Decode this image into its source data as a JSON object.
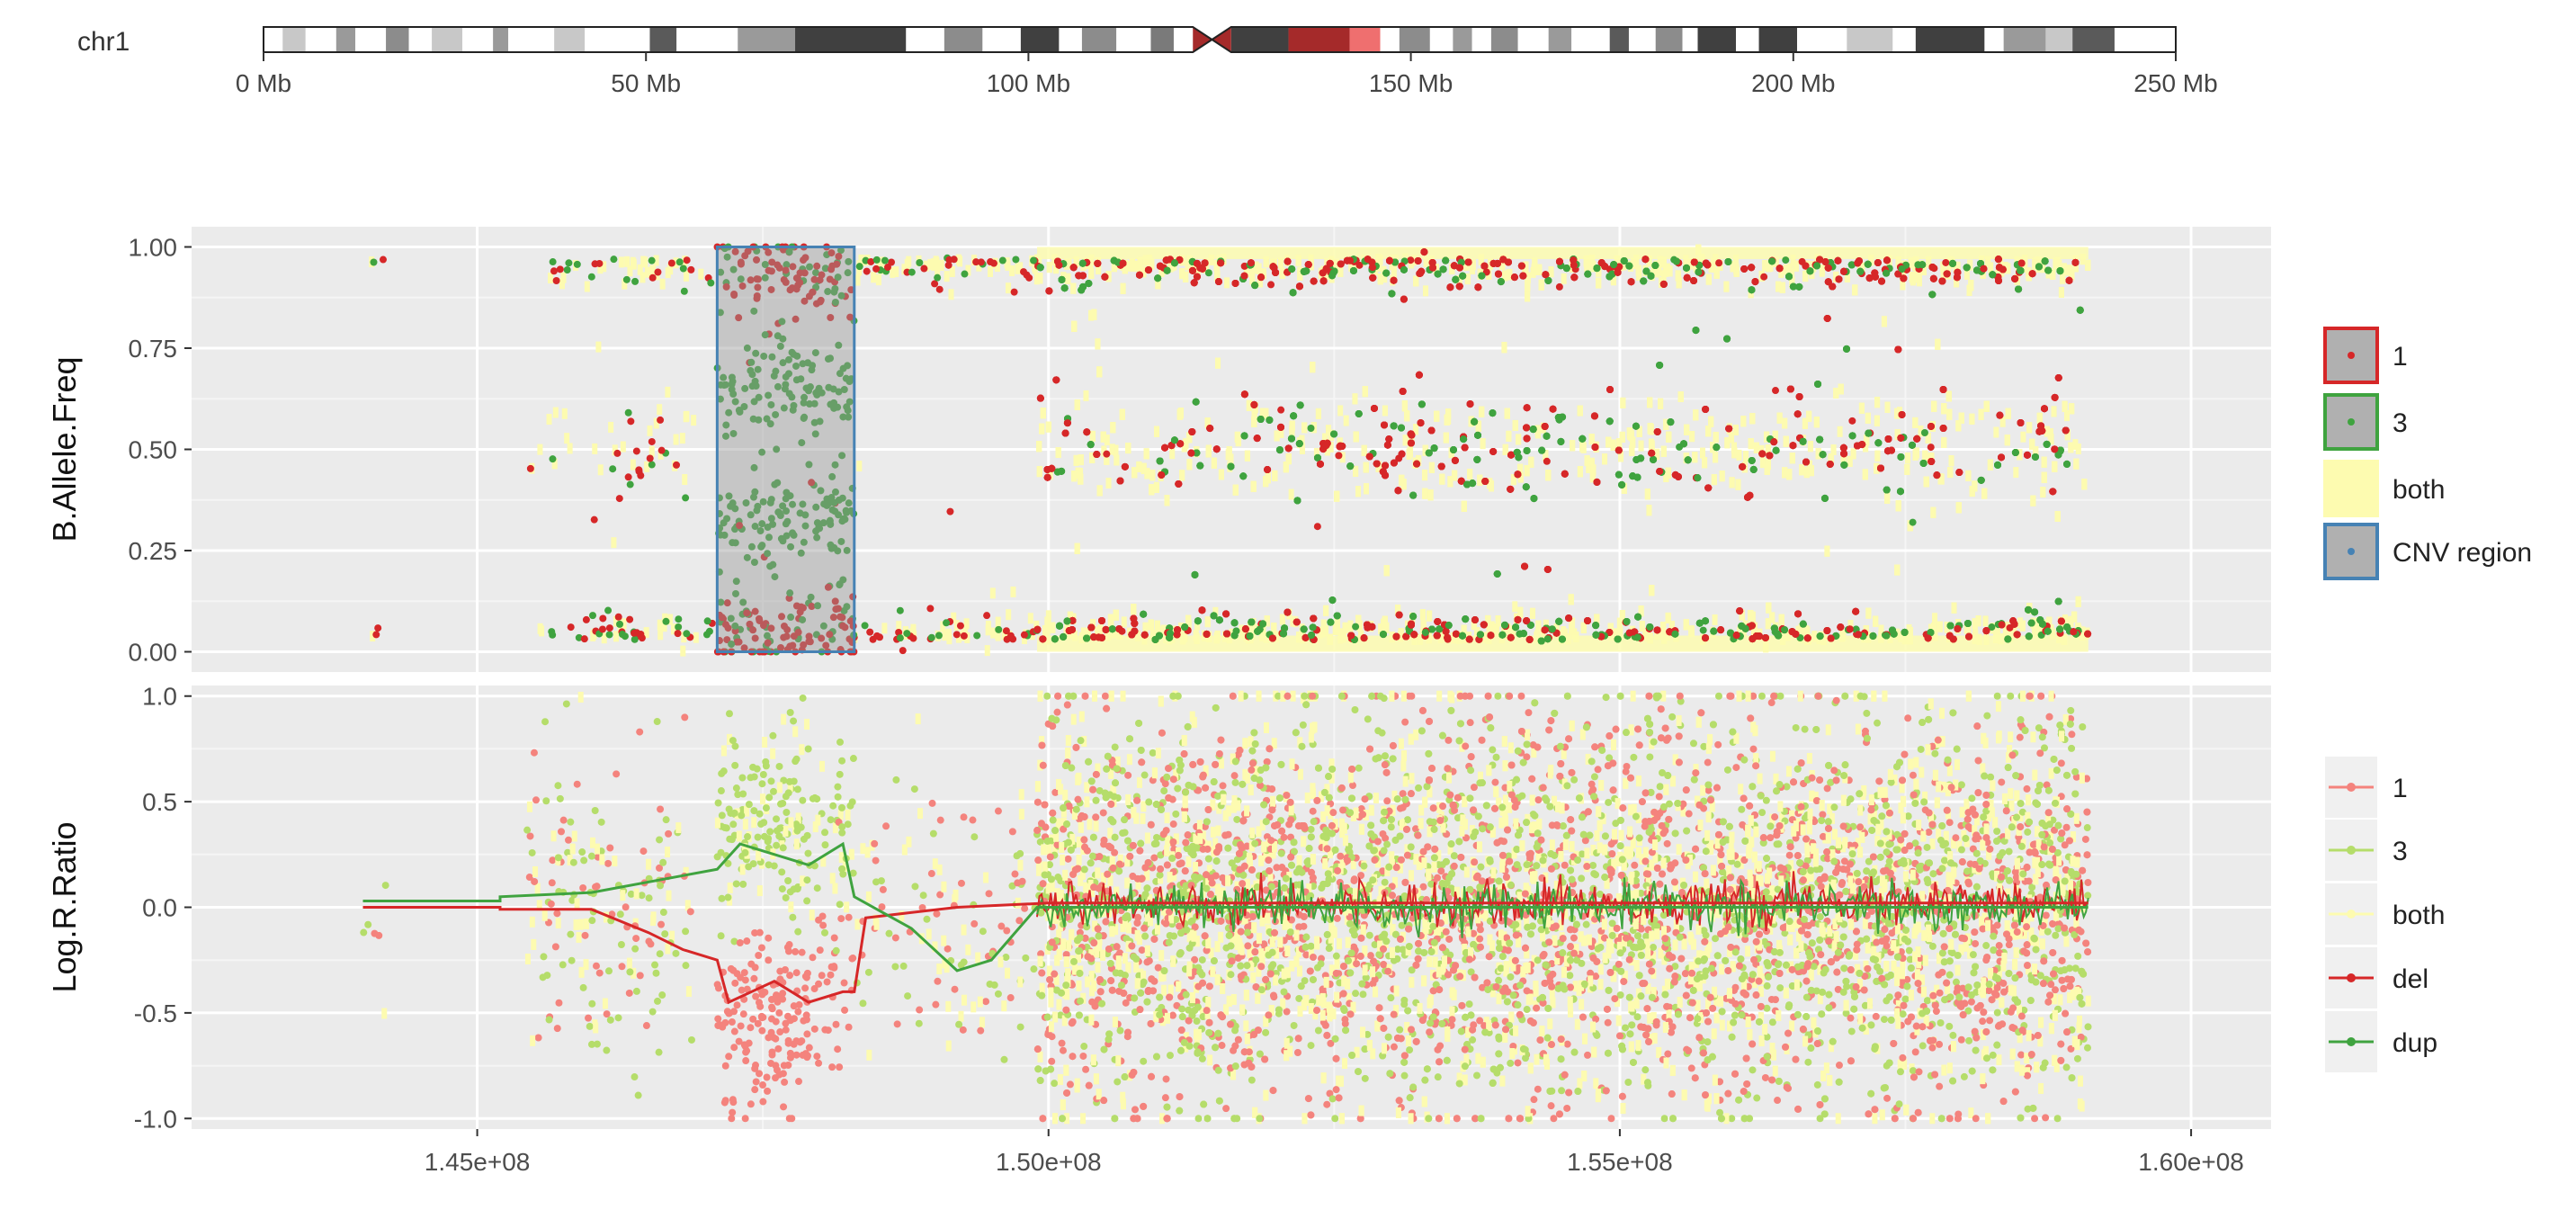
{
  "ideogram": {
    "chromosome_label": "chr1",
    "xlim": [
      0,
      250
    ],
    "ticks": [
      {
        "value": 0,
        "label": "0 Mb"
      },
      {
        "value": 50,
        "label": "50 Mb"
      },
      {
        "value": 100,
        "label": "100 Mb"
      },
      {
        "value": 150,
        "label": "150 Mb"
      },
      {
        "value": 200,
        "label": "200 Mb"
      },
      {
        "value": 250,
        "label": "250 Mb"
      }
    ],
    "bands": [
      {
        "start": 0.0,
        "end": 2.5,
        "color": "#ffffff"
      },
      {
        "start": 2.5,
        "end": 5.5,
        "color": "#c8c8c8"
      },
      {
        "start": 5.5,
        "end": 9.5,
        "color": "#ffffff"
      },
      {
        "start": 9.5,
        "end": 12.0,
        "color": "#9a9a9a"
      },
      {
        "start": 12.0,
        "end": 16.0,
        "color": "#ffffff"
      },
      {
        "start": 16.0,
        "end": 19.0,
        "color": "#8c8c8c"
      },
      {
        "start": 19.0,
        "end": 22.0,
        "color": "#ffffff"
      },
      {
        "start": 22.0,
        "end": 26.0,
        "color": "#c8c8c8"
      },
      {
        "start": 26.0,
        "end": 30.0,
        "color": "#ffffff"
      },
      {
        "start": 30.0,
        "end": 32.0,
        "color": "#9a9a9a"
      },
      {
        "start": 32.0,
        "end": 38.0,
        "color": "#ffffff"
      },
      {
        "start": 38.0,
        "end": 42.0,
        "color": "#c8c8c8"
      },
      {
        "start": 42.0,
        "end": 50.5,
        "color": "#ffffff"
      },
      {
        "start": 50.5,
        "end": 54.0,
        "color": "#5a5a5a"
      },
      {
        "start": 54.0,
        "end": 62.0,
        "color": "#ffffff"
      },
      {
        "start": 62.0,
        "end": 69.5,
        "color": "#9a9a9a"
      },
      {
        "start": 69.5,
        "end": 84.0,
        "color": "#404040"
      },
      {
        "start": 84.0,
        "end": 89.0,
        "color": "#ffffff"
      },
      {
        "start": 89.0,
        "end": 94.0,
        "color": "#8c8c8c"
      },
      {
        "start": 94.0,
        "end": 99.0,
        "color": "#ffffff"
      },
      {
        "start": 99.0,
        "end": 104.0,
        "color": "#404040"
      },
      {
        "start": 104.0,
        "end": 107.0,
        "color": "#ffffff"
      },
      {
        "start": 107.0,
        "end": 111.5,
        "color": "#8c8c8c"
      },
      {
        "start": 111.5,
        "end": 116.0,
        "color": "#ffffff"
      },
      {
        "start": 116.0,
        "end": 119.0,
        "color": "#7a7a7a"
      },
      {
        "start": 119.0,
        "end": 121.5,
        "color": "#ffffff"
      },
      {
        "start": 126.5,
        "end": 134.0,
        "color": "#404040"
      },
      {
        "start": 134.0,
        "end": 142.0,
        "color": "#a52a2a"
      },
      {
        "start": 142.0,
        "end": 146.0,
        "color": "#ef6f6f"
      },
      {
        "start": 146.0,
        "end": 148.5,
        "color": "#ffffff"
      },
      {
        "start": 148.5,
        "end": 152.5,
        "color": "#8c8c8c"
      },
      {
        "start": 152.5,
        "end": 155.5,
        "color": "#ffffff"
      },
      {
        "start": 155.5,
        "end": 158.0,
        "color": "#9a9a9a"
      },
      {
        "start": 158.0,
        "end": 160.5,
        "color": "#ffffff"
      },
      {
        "start": 160.5,
        "end": 164.0,
        "color": "#8c8c8c"
      },
      {
        "start": 164.0,
        "end": 168.0,
        "color": "#ffffff"
      },
      {
        "start": 168.0,
        "end": 171.0,
        "color": "#9a9a9a"
      },
      {
        "start": 171.0,
        "end": 176.0,
        "color": "#ffffff"
      },
      {
        "start": 176.0,
        "end": 178.5,
        "color": "#5a5a5a"
      },
      {
        "start": 178.5,
        "end": 182.0,
        "color": "#ffffff"
      },
      {
        "start": 182.0,
        "end": 185.5,
        "color": "#8c8c8c"
      },
      {
        "start": 185.5,
        "end": 187.5,
        "color": "#ffffff"
      },
      {
        "start": 187.5,
        "end": 192.5,
        "color": "#404040"
      },
      {
        "start": 192.5,
        "end": 195.5,
        "color": "#ffffff"
      },
      {
        "start": 195.5,
        "end": 200.5,
        "color": "#404040"
      },
      {
        "start": 200.5,
        "end": 207.0,
        "color": "#ffffff"
      },
      {
        "start": 207.0,
        "end": 213.0,
        "color": "#c8c8c8"
      },
      {
        "start": 213.0,
        "end": 216.0,
        "color": "#ffffff"
      },
      {
        "start": 216.0,
        "end": 225.0,
        "color": "#404040"
      },
      {
        "start": 225.0,
        "end": 227.5,
        "color": "#ffffff"
      },
      {
        "start": 227.5,
        "end": 233.0,
        "color": "#9a9a9a"
      },
      {
        "start": 233.0,
        "end": 236.5,
        "color": "#c8c8c8"
      },
      {
        "start": 236.5,
        "end": 242.0,
        "color": "#5a5a5a"
      },
      {
        "start": 242.0,
        "end": 250.0,
        "color": "#ffffff"
      }
    ],
    "centromere": {
      "start": 121.5,
      "end": 126.5,
      "color": "#a52a2a"
    }
  },
  "chart_data": [
    {
      "id": "baf",
      "type": "scatter",
      "xlabel": "",
      "ylabel": "B.Allele.Freq",
      "xlim": [
        142500000,
        160700000
      ],
      "ylim": [
        -0.05,
        1.05
      ],
      "yticks": [
        0.0,
        0.25,
        0.5,
        0.75,
        1.0
      ],
      "ytick_labels": [
        "0.00",
        "0.25",
        "0.50",
        "0.75",
        "1.00"
      ],
      "xticks": [
        145000000,
        150000000,
        155000000,
        160000000
      ],
      "xtick_labels": [
        "1.45e+08",
        "1.50e+08",
        "1.55e+08",
        "1.60e+08"
      ],
      "grid": true,
      "legend_position": "right",
      "cnv_region": {
        "x_start": 147100000,
        "x_end": 148300000,
        "y_start": 0.0,
        "y_end": 1.0,
        "label": "CNV region"
      },
      "segments": [
        {
          "start": 144000000,
          "end": 144200000,
          "density": 3,
          "levels": [
            0.0,
            1.0
          ]
        },
        {
          "start": 145400000,
          "end": 146000000,
          "density": 5,
          "levels": [
            0.0,
            0.5,
            1.0
          ]
        },
        {
          "start": 146000000,
          "end": 146900000,
          "density": 14,
          "levels": [
            0.0,
            0.5,
            1.0
          ]
        },
        {
          "start": 146900000,
          "end": 147100000,
          "density": 4,
          "levels": [
            0.0,
            1.0
          ]
        },
        {
          "start": 147100000,
          "end": 148300000,
          "density": 40,
          "levels": [
            0.05,
            0.32,
            0.65,
            0.93
          ]
        },
        {
          "start": 148300000,
          "end": 149900000,
          "density": 10,
          "levels": [
            0.0,
            1.0
          ]
        },
        {
          "start": 149900000,
          "end": 159100000,
          "density": 90,
          "levels": [
            0.0,
            0.5,
            1.0
          ]
        }
      ],
      "series": [
        {
          "name": "1",
          "color": "#d62728",
          "legend_border": "#d62728"
        },
        {
          "name": "3",
          "color": "#3fa33f",
          "legend_border": "#3fa33f"
        },
        {
          "name": "both",
          "color": "#fdfbb0",
          "legend_border": "#fdfbb0"
        },
        {
          "name": "CNV region",
          "color": "#4682b4",
          "legend_border": "#4682b4"
        }
      ]
    },
    {
      "id": "lrr",
      "type": "scatter",
      "xlabel": "",
      "ylabel": "Log.R.Ratio",
      "xlim": [
        142500000,
        160700000
      ],
      "ylim": [
        -1.05,
        1.05
      ],
      "yticks": [
        -1.0,
        -0.5,
        0.0,
        0.5,
        1.0
      ],
      "ytick_labels": [
        "-1.0",
        "-0.5",
        "0.0",
        "0.5",
        "1.0"
      ],
      "xticks": [
        145000000,
        150000000,
        155000000,
        160000000
      ],
      "xtick_labels": [
        "1.45e+08",
        "1.50e+08",
        "1.55e+08",
        "1.60e+08"
      ],
      "grid": true,
      "legend_position": "right",
      "segments": [
        {
          "start": 144000000,
          "end": 144200000,
          "density": 3,
          "mean": 0.0,
          "spread": 0.3
        },
        {
          "start": 145400000,
          "end": 146900000,
          "density": 12,
          "mean": 0.0,
          "spread": 0.35
        },
        {
          "start": 147100000,
          "end": 147900000,
          "density": 40,
          "mean_del": -0.55,
          "mean_dup": 0.4,
          "spread": 0.3
        },
        {
          "start": 147900000,
          "end": 148300000,
          "density": 20,
          "mean_del": -0.35,
          "mean_dup": 0.3,
          "spread": 0.3
        },
        {
          "start": 148300000,
          "end": 149900000,
          "density": 8,
          "mean": -0.1,
          "spread": 0.3
        },
        {
          "start": 149900000,
          "end": 159100000,
          "density": 90,
          "mean": 0.0,
          "spread": 0.45
        }
      ],
      "del_line": [
        [
          144000000,
          0.0
        ],
        [
          145200000,
          0.0
        ],
        [
          145200000,
          -0.01
        ],
        [
          146000000,
          -0.01
        ],
        [
          146500000,
          -0.12
        ],
        [
          146800000,
          -0.2
        ],
        [
          147100000,
          -0.25
        ],
        [
          147200000,
          -0.45
        ],
        [
          147600000,
          -0.35
        ],
        [
          147900000,
          -0.45
        ],
        [
          148200000,
          -0.4
        ],
        [
          148300000,
          -0.4
        ],
        [
          148400000,
          -0.05
        ],
        [
          149200000,
          0.0
        ],
        [
          150000000,
          0.02
        ],
        [
          159100000,
          0.02
        ]
      ],
      "dup_line": [
        [
          144000000,
          0.03
        ],
        [
          145200000,
          0.03
        ],
        [
          145200000,
          0.05
        ],
        [
          146000000,
          0.07
        ],
        [
          146800000,
          0.15
        ],
        [
          147100000,
          0.18
        ],
        [
          147300000,
          0.3
        ],
        [
          147900000,
          0.2
        ],
        [
          148200000,
          0.3
        ],
        [
          148300000,
          0.05
        ],
        [
          148800000,
          -0.1
        ],
        [
          149200000,
          -0.3
        ],
        [
          149500000,
          -0.25
        ],
        [
          149900000,
          0.0
        ],
        [
          159100000,
          0.0
        ]
      ],
      "series": [
        {
          "name": "1",
          "color": "#f4837d",
          "kind": "point-line"
        },
        {
          "name": "3",
          "color": "#b5dd6a",
          "kind": "point-line"
        },
        {
          "name": "both",
          "color": "#fdfbb0",
          "kind": "point-line"
        },
        {
          "name": "del",
          "color": "#d62728",
          "kind": "point-line"
        },
        {
          "name": "dup",
          "color": "#3fa33f",
          "kind": "point-line"
        }
      ]
    }
  ]
}
